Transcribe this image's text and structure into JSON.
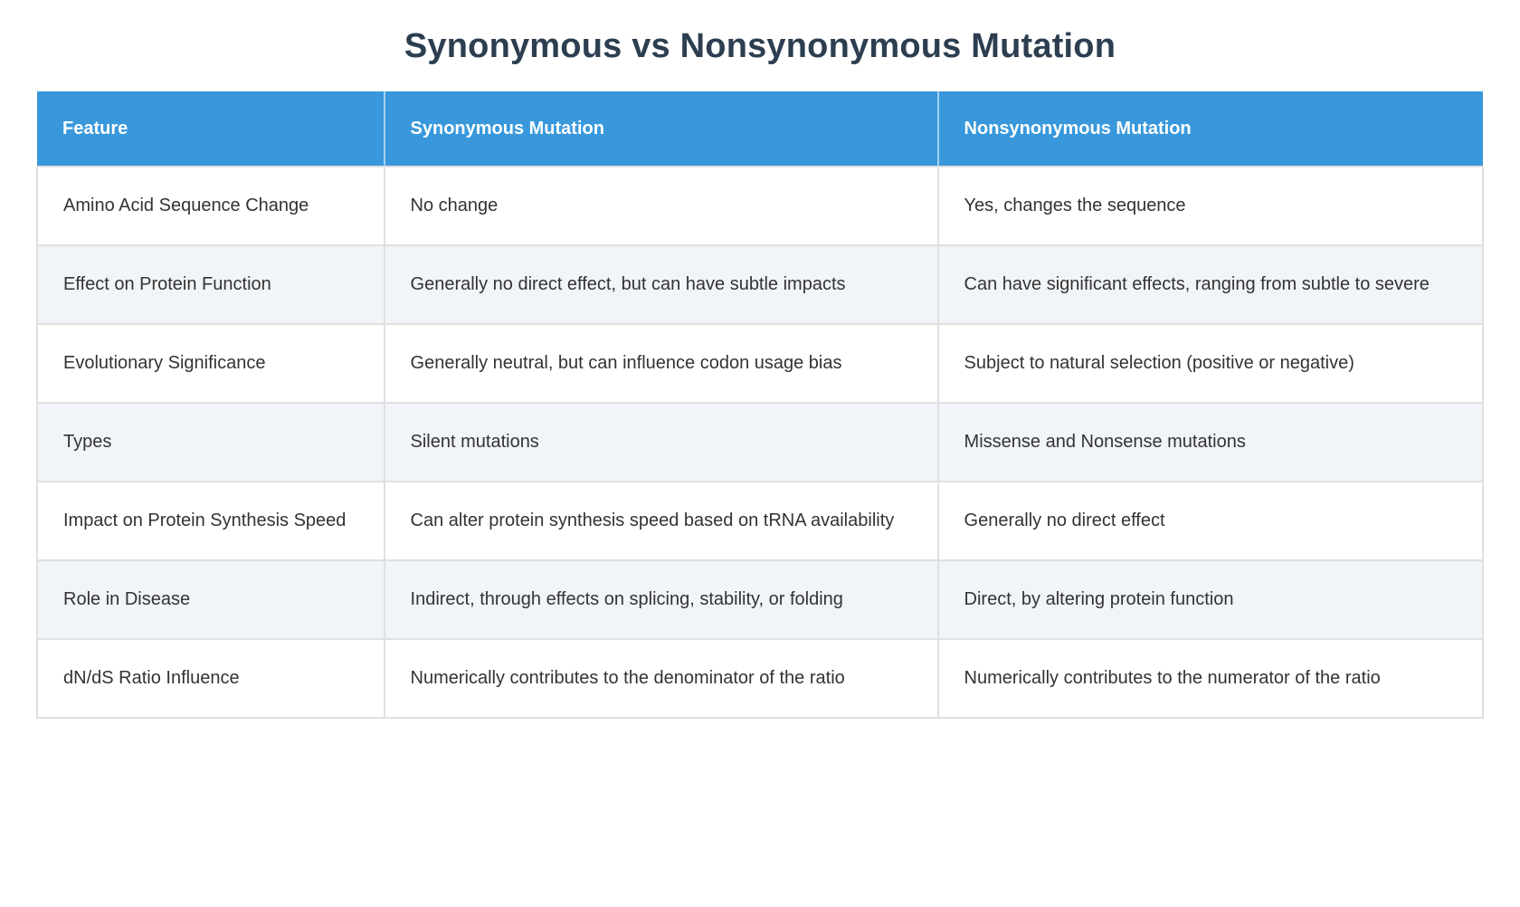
{
  "page": {
    "title": "Synonymous vs Nonsynonymous Mutation"
  },
  "colors": {
    "header_bg": "#3898db",
    "header_text": "#ffffff",
    "title_text": "#2c3e50",
    "row_bg": "#ffffff",
    "row_alt_bg": "#f1f4f8",
    "border": "#e0e0e0",
    "body_text": "#333333"
  },
  "table": {
    "columns": [
      {
        "key": "feature",
        "label": "Feature"
      },
      {
        "key": "synonymous",
        "label": "Synonymous Mutation"
      },
      {
        "key": "nonsynonymous",
        "label": "Nonsynonymous Mutation"
      }
    ],
    "rows": [
      {
        "feature": "Amino Acid Sequence Change",
        "synonymous": "No change",
        "nonsynonymous": "Yes, changes the sequence"
      },
      {
        "feature": "Effect on Protein Function",
        "synonymous": "Generally no direct effect, but can have subtle impacts",
        "nonsynonymous": "Can have significant effects, ranging from subtle to severe"
      },
      {
        "feature": "Evolutionary Significance",
        "synonymous": "Generally neutral, but can influence codon usage bias",
        "nonsynonymous": "Subject to natural selection (positive or negative)"
      },
      {
        "feature": "Types",
        "synonymous": "Silent mutations",
        "nonsynonymous": "Missense and Nonsense mutations"
      },
      {
        "feature": "Impact on Protein Synthesis Speed",
        "synonymous": "Can alter protein synthesis speed based on tRNA availability",
        "nonsynonymous": "Generally no direct effect"
      },
      {
        "feature": "Role in Disease",
        "synonymous": "Indirect, through effects on splicing, stability, or folding",
        "nonsynonymous": "Direct, by altering protein function"
      },
      {
        "feature": "dN/dS Ratio Influence",
        "synonymous": "Numerically contributes to the denominator of the ratio",
        "nonsynonymous": "Numerically contributes to the numerator of the ratio"
      }
    ]
  }
}
